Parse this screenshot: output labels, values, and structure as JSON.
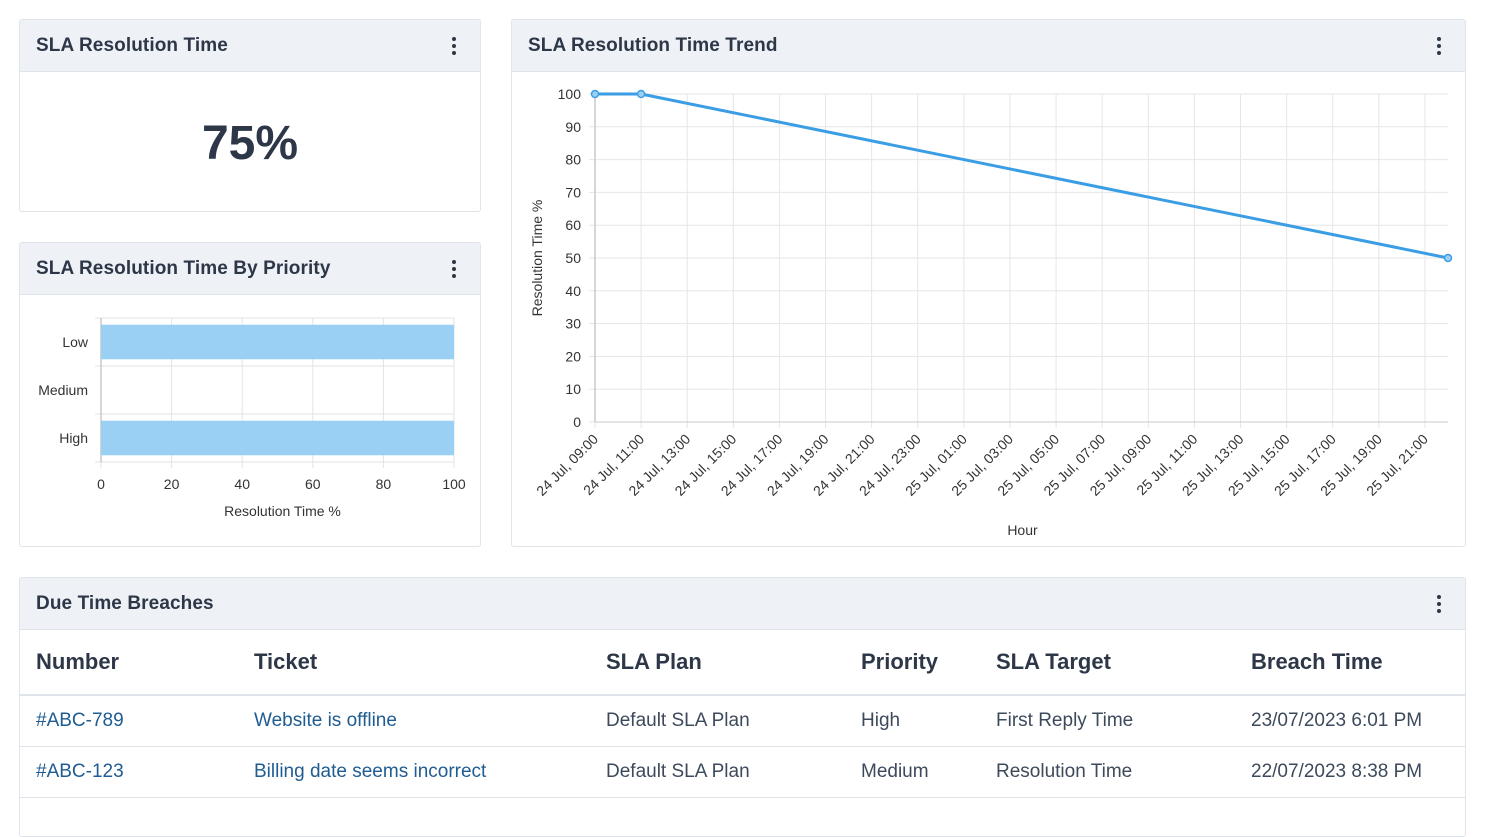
{
  "kpi_card": {
    "title": "SLA Resolution Time",
    "value": "75%"
  },
  "priority_card": {
    "title": "SLA Resolution Time By Priority",
    "chart_data": {
      "type": "bar",
      "orientation": "horizontal",
      "categories": [
        "Low",
        "Medium",
        "High"
      ],
      "values": [
        100,
        0,
        100
      ],
      "xlabel": "Resolution Time %",
      "ylabel": "",
      "xlim": [
        0,
        100
      ],
      "xticks": [
        "0",
        "20",
        "40",
        "60",
        "80",
        "100"
      ],
      "grid": true,
      "color": "#9bd0f5"
    }
  },
  "trend_card": {
    "title": "SLA Resolution Time Trend",
    "chart_data": {
      "type": "line",
      "x": [
        "24 Jul, 09:00",
        "24 Jul, 10:00",
        "24 Jul, 11:00",
        "24 Jul, 12:00",
        "24 Jul, 13:00",
        "24 Jul, 14:00",
        "24 Jul, 15:00",
        "24 Jul, 16:00",
        "24 Jul, 17:00",
        "24 Jul, 18:00",
        "24 Jul, 19:00",
        "24 Jul, 20:00",
        "24 Jul, 21:00",
        "24 Jul, 22:00",
        "24 Jul, 23:00",
        "25 Jul, 00:00",
        "25 Jul, 01:00",
        "25 Jul, 02:00",
        "25 Jul, 03:00",
        "25 Jul, 04:00",
        "25 Jul, 05:00",
        "25 Jul, 06:00",
        "25 Jul, 07:00",
        "25 Jul, 08:00",
        "25 Jul, 09:00",
        "25 Jul, 10:00",
        "25 Jul, 11:00",
        "25 Jul, 12:00",
        "25 Jul, 13:00",
        "25 Jul, 14:00",
        "25 Jul, 15:00",
        "25 Jul, 16:00",
        "25 Jul, 17:00",
        "25 Jul, 18:00",
        "25 Jul, 19:00",
        "25 Jul, 20:00",
        "25 Jul, 21:00",
        "25 Jul, 22:00"
      ],
      "xtick_labels": [
        "24 Jul, 09:00",
        "24 Jul, 11:00",
        "24 Jul, 13:00",
        "24 Jul, 15:00",
        "24 Jul, 17:00",
        "24 Jul, 19:00",
        "24 Jul, 21:00",
        "24 Jul, 23:00",
        "25 Jul, 01:00",
        "25 Jul, 03:00",
        "25 Jul, 05:00",
        "25 Jul, 07:00",
        "25 Jul, 09:00",
        "25 Jul, 11:00",
        "25 Jul, 13:00",
        "25 Jul, 15:00",
        "25 Jul, 17:00",
        "25 Jul, 19:00",
        "25 Jul, 21:00"
      ],
      "points": [
        {
          "x": "24 Jul, 09:00",
          "y": 100
        },
        {
          "x": "24 Jul, 11:00",
          "y": 100
        },
        {
          "x": "25 Jul, 22:00",
          "y": 50
        }
      ],
      "xlabel": "Hour",
      "ylabel": "Resolution Time %",
      "ylim": [
        0,
        100
      ],
      "yticks": [
        "0",
        "10",
        "20",
        "30",
        "40",
        "50",
        "60",
        "70",
        "80",
        "90",
        "100"
      ],
      "grid": true,
      "color": "#3b9ee5"
    }
  },
  "breaches_card": {
    "title": "Due Time Breaches",
    "columns": [
      "Number",
      "Ticket",
      "SLA Plan",
      "Priority",
      "SLA Target",
      "Breach Time"
    ],
    "rows": [
      {
        "number": "#ABC-789",
        "ticket": "Website is offline",
        "sla_plan": "Default SLA Plan",
        "priority": "High",
        "sla_target": "First Reply Time",
        "breach_time": "23/07/2023 6:01 PM"
      },
      {
        "number": "#ABC-123",
        "ticket": "Billing date seems incorrect",
        "sla_plan": "Default SLA Plan",
        "priority": "Medium",
        "sla_target": "Resolution Time",
        "breach_time": "22/07/2023 8:38 PM"
      }
    ]
  }
}
